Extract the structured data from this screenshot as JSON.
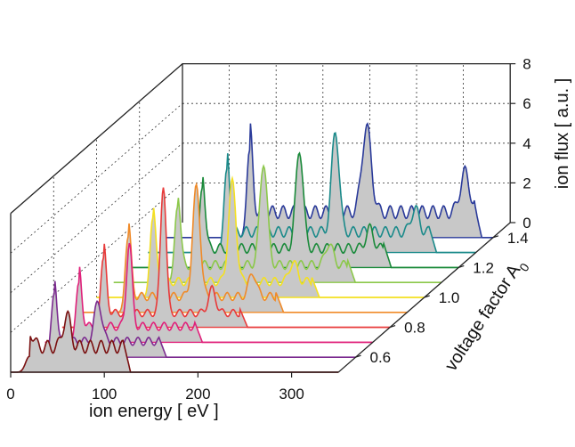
{
  "chart_data": {
    "type": "line",
    "style": "3d-waterfall",
    "xlabel": "ion energy [ eV ]",
    "ylabel": "voltage factor A",
    "ylabel_subscript": "0",
    "zlabel": "ion flux [ a.u. ]",
    "x_ticks": [
      "0",
      "100",
      "200",
      "300"
    ],
    "y_ticks": [
      "0.6",
      "0.8",
      "1.0",
      "1.2",
      "1.4"
    ],
    "z_ticks": [
      "0",
      "2",
      "4",
      "6",
      "8"
    ],
    "xlim": [
      0,
      350
    ],
    "ylim": [
      0.5,
      1.5
    ],
    "zlim": [
      0,
      8
    ],
    "fill_color": "#c8c8c8",
    "series": [
      {
        "a0": 0.5,
        "color": "#7a1010",
        "peaks": [
          [
            20,
            0.8,
            4
          ],
          [
            60,
            1.6,
            4
          ]
        ],
        "plateau": [
          20,
          120,
          1.6
        ]
      },
      {
        "a0": 0.6,
        "color": "#7b2a8f",
        "peaks": [
          [
            28,
            3.2,
            3
          ],
          [
            75,
            2.0,
            4
          ]
        ],
        "plateau": [
          28,
          140,
          1.0
        ]
      },
      {
        "a0": 0.7,
        "color": "#e0207a",
        "peaks": [
          [
            36,
            3.0,
            3
          ],
          [
            90,
            4.2,
            3
          ]
        ],
        "plateau": [
          36,
          160,
          1.0
        ]
      },
      {
        "a0": 0.8,
        "color": "#e83a3a",
        "peaks": [
          [
            44,
            3.5,
            3
          ],
          [
            108,
            6.5,
            3
          ],
          [
            160,
            1.2,
            4
          ]
        ],
        "plateau": [
          44,
          190,
          0.9
        ]
      },
      {
        "a0": 0.9,
        "color": "#f08a28",
        "peaks": [
          [
            52,
            3.8,
            3
          ],
          [
            125,
            5.5,
            4
          ],
          [
            185,
            1.2,
            4
          ]
        ],
        "plateau": [
          52,
          210,
          1.0
        ]
      },
      {
        "a0": 1.0,
        "color": "#f4e020",
        "peaks": [
          [
            60,
            4.0,
            3
          ],
          [
            145,
            5.0,
            4
          ],
          [
            210,
            1.0,
            4
          ]
        ],
        "plateau": [
          60,
          230,
          1.0
        ]
      },
      {
        "a0": 1.1,
        "color": "#8cc84a",
        "peaks": [
          [
            68,
            3.8,
            3
          ],
          [
            160,
            5.2,
            4
          ],
          [
            230,
            1.1,
            4
          ]
        ],
        "plateau": [
          68,
          250,
          1.1
        ]
      },
      {
        "a0": 1.2,
        "color": "#1a8a3a",
        "peaks": [
          [
            76,
            4.0,
            3
          ],
          [
            180,
            5.0,
            4
          ],
          [
            255,
            1.0,
            4
          ]
        ],
        "plateau": [
          76,
          270,
          1.2
        ]
      },
      {
        "a0": 1.3,
        "color": "#1a8a8a",
        "peaks": [
          [
            84,
            4.2,
            3
          ],
          [
            200,
            5.1,
            4
          ],
          [
            285,
            1.2,
            4
          ]
        ],
        "plateau": [
          84,
          300,
          1.3
        ]
      },
      {
        "a0": 1.4,
        "color": "#2a3a9a",
        "peaks": [
          [
            90,
            4.4,
            3
          ],
          [
            215,
            4.3,
            5
          ],
          [
            320,
            2.0,
            5
          ]
        ],
        "plateau": [
          90,
          330,
          1.6
        ]
      }
    ]
  }
}
